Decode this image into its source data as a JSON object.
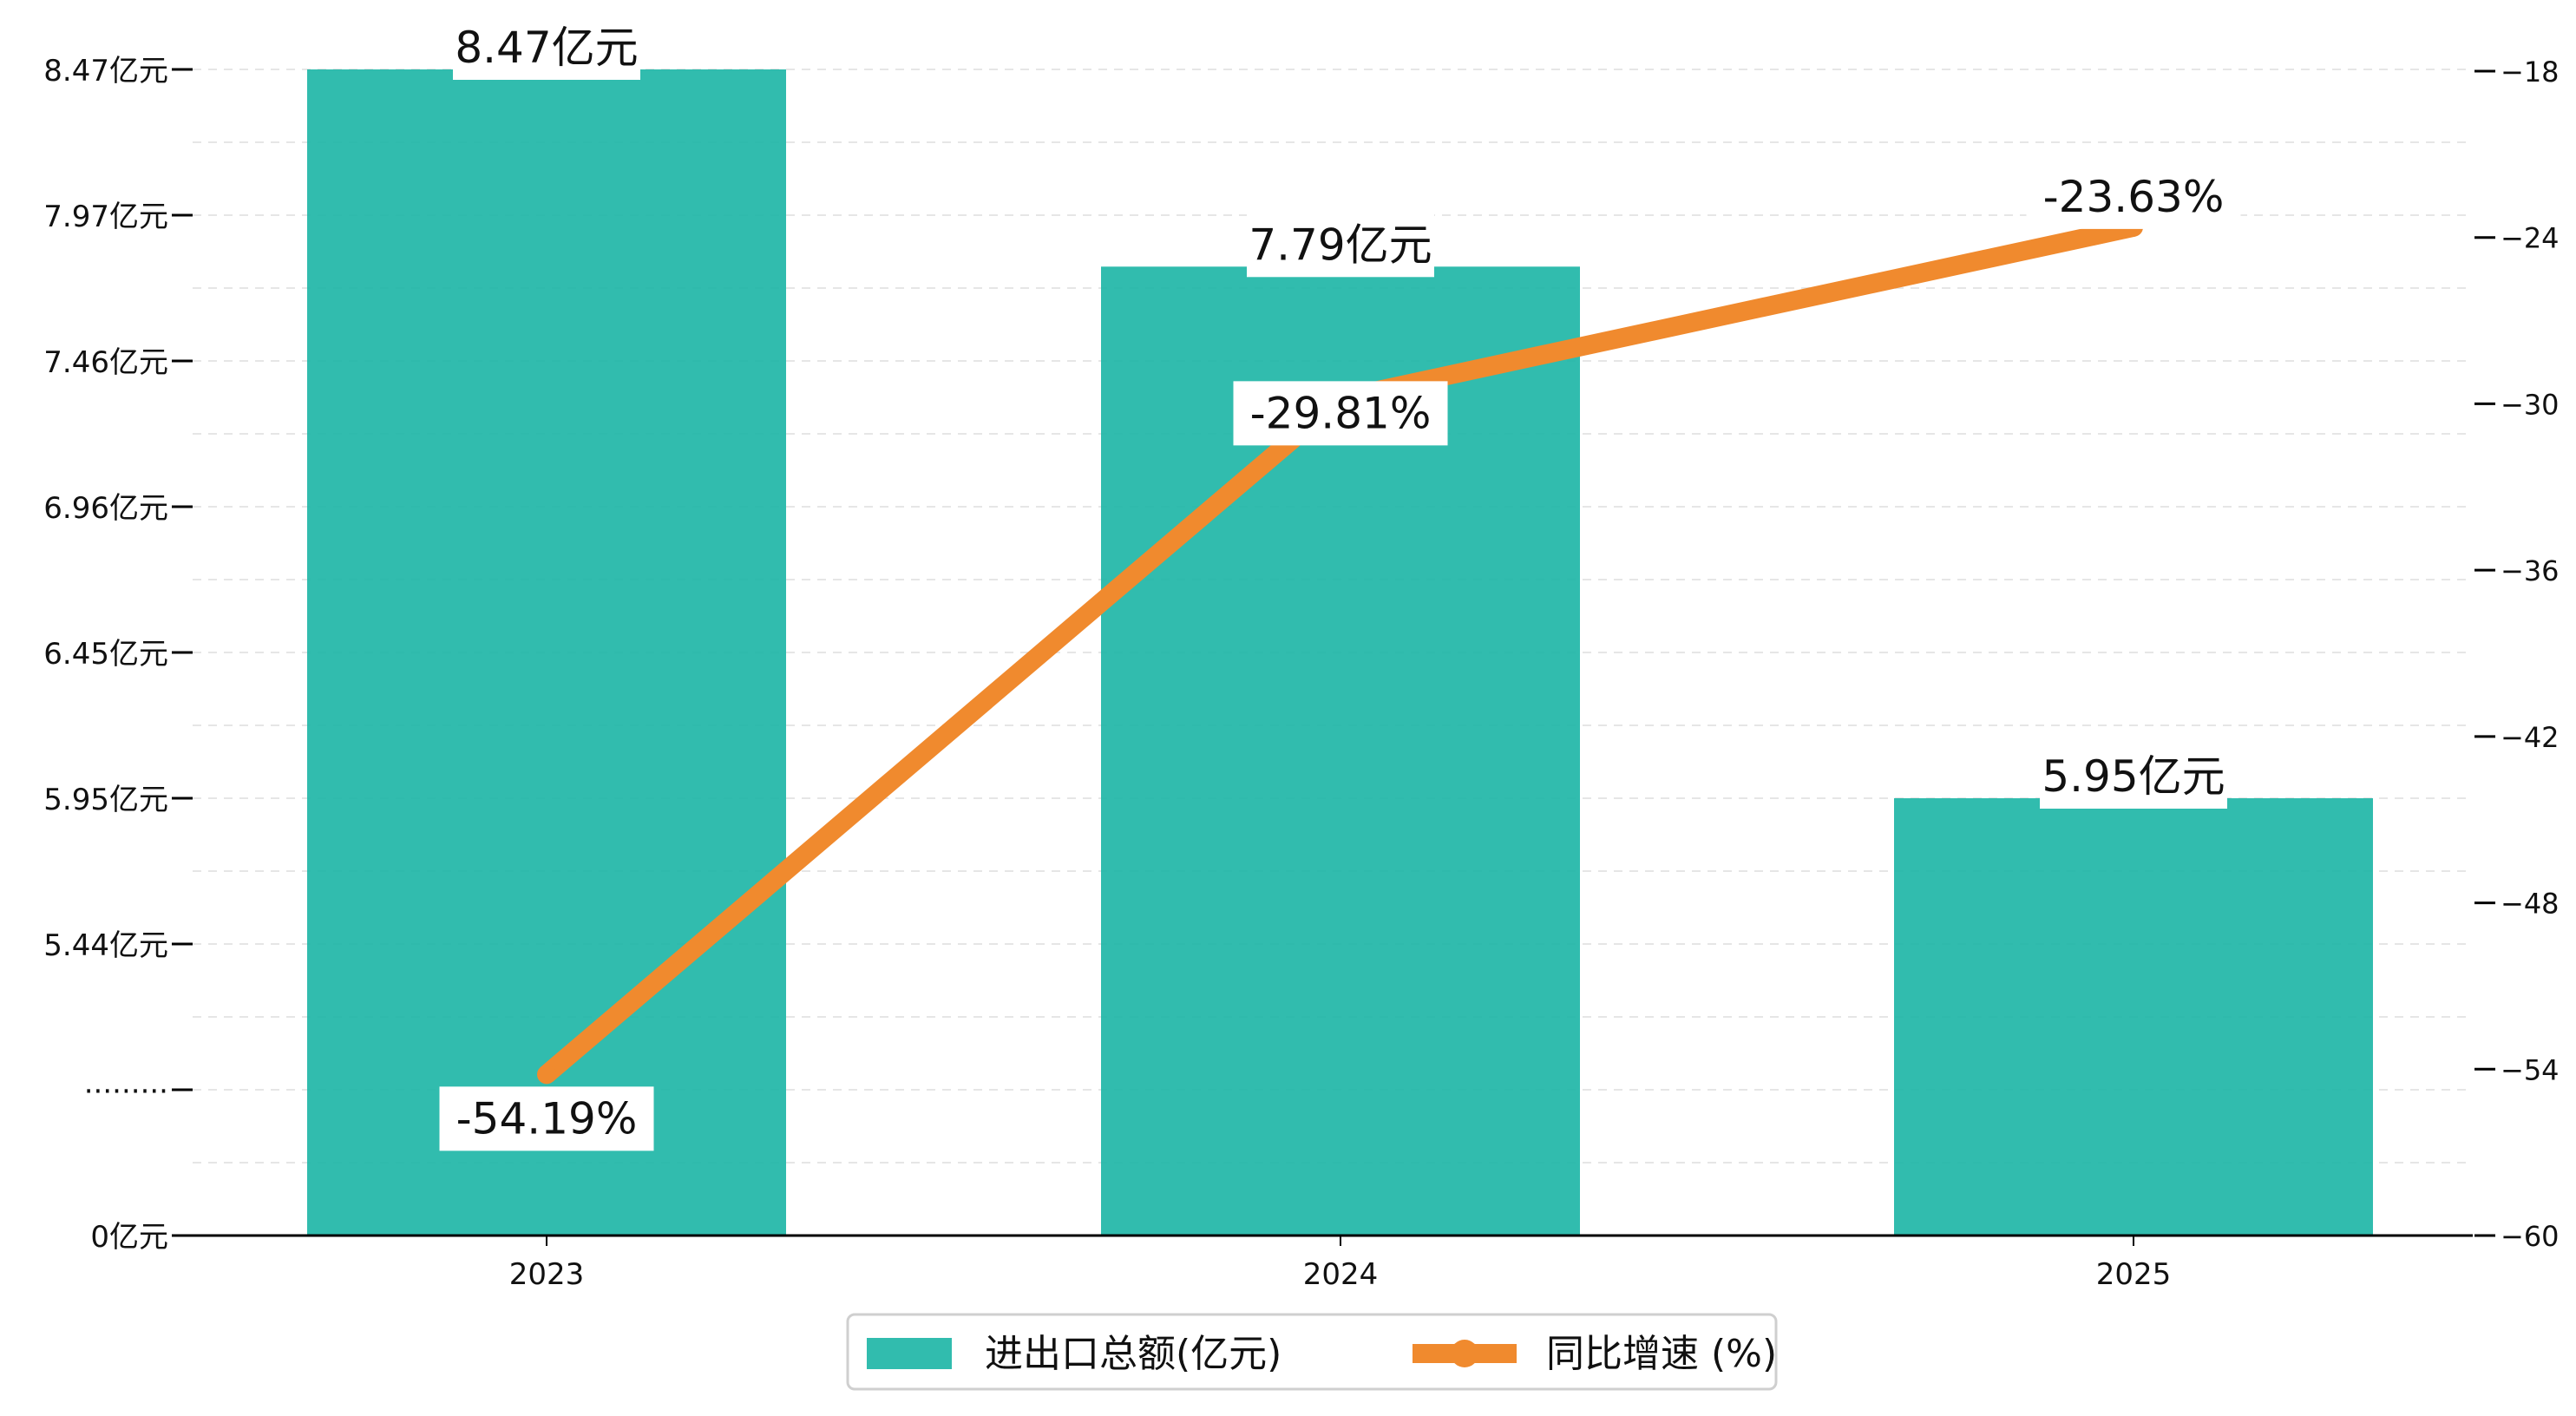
{
  "chart_data": {
    "type": "bar",
    "categories": [
      "2023",
      "2024",
      "2025"
    ],
    "series": [
      {
        "name": "进出口总额(亿元)",
        "type": "bar",
        "axis": "left",
        "values": [
          8.47,
          7.79,
          5.95
        ],
        "labels": [
          "8.47亿元",
          "7.79亿元",
          "5.95亿元"
        ],
        "color": "#1BB5A5"
      },
      {
        "name": "同比增速 (%)",
        "type": "line",
        "axis": "right",
        "values": [
          -54.19,
          -29.81,
          -23.63
        ],
        "labels": [
          "-54.19%",
          "-29.81%",
          "-23.63%"
        ],
        "color": "#F08A2E"
      }
    ],
    "left_axis": {
      "break": true,
      "ticks": [
        {
          "value": 0,
          "label": "0亿元"
        },
        {
          "value": null,
          "label": "·········"
        },
        {
          "value": 5.44,
          "label": "5.44亿元"
        },
        {
          "value": 5.95,
          "label": "5.95亿元"
        },
        {
          "value": 6.45,
          "label": "6.45亿元"
        },
        {
          "value": 6.96,
          "label": "6.96亿元"
        },
        {
          "value": 7.46,
          "label": "7.46亿元"
        },
        {
          "value": 7.97,
          "label": "7.97亿元"
        },
        {
          "value": 8.47,
          "label": "8.47亿元"
        }
      ]
    },
    "right_axis": {
      "ylim": [
        -60,
        -18
      ],
      "ticks": [
        -18,
        -24,
        -30,
        -36,
        -42,
        -48,
        -54,
        -60
      ]
    },
    "grid": "horizontal-dashed",
    "legend_position": "bottom-center"
  }
}
